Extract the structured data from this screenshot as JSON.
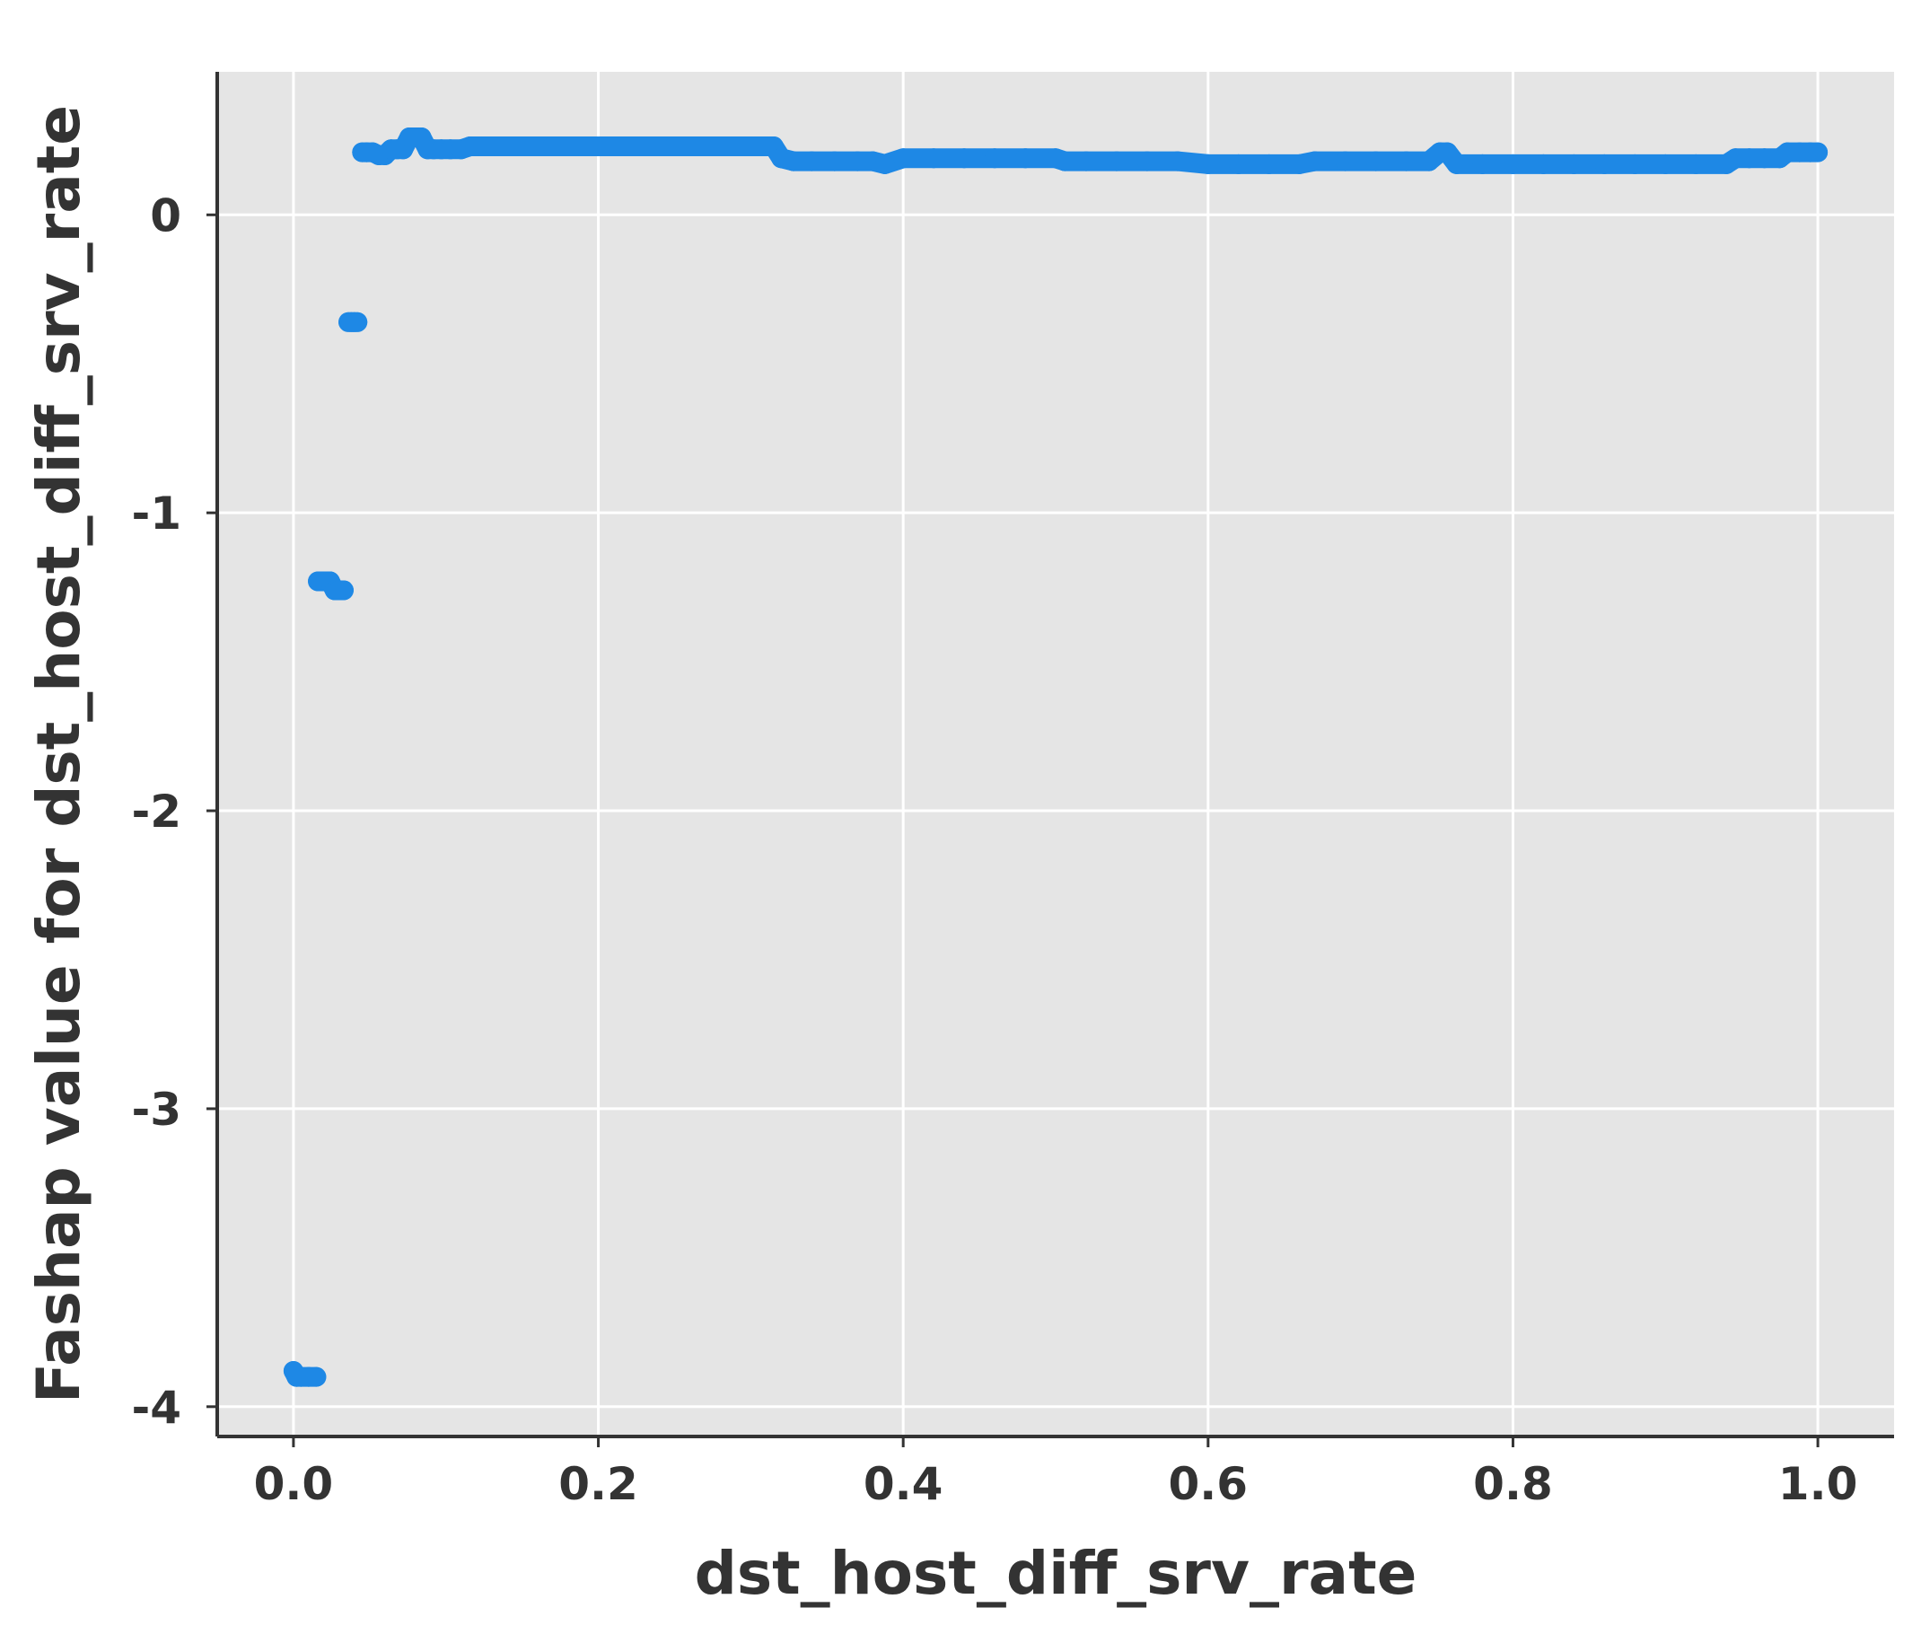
{
  "chart_data": {
    "type": "scatter",
    "title": "",
    "xlabel": "dst_host_diff_srv_rate",
    "ylabel": "Fashap value for dst_host_diff_srv_rate",
    "xlim": [
      -0.05,
      1.05
    ],
    "ylim": [
      -4.1,
      0.48
    ],
    "x_ticks": [
      0.0,
      0.2,
      0.4,
      0.6,
      0.8,
      1.0
    ],
    "x_tick_labels": [
      "0.0",
      "0.2",
      "0.4",
      "0.6",
      "0.8",
      "1.0"
    ],
    "y_ticks": [
      0,
      -1,
      -2,
      -3,
      -4
    ],
    "y_tick_labels": [
      "0",
      "-1",
      "-2",
      "-3",
      "-4"
    ],
    "grid": true,
    "colors": {
      "points": "#1E88E5",
      "panel": "#E5E5E5",
      "grid": "#FFFFFF",
      "axis": "#333333"
    },
    "series": [
      {
        "x": [
          0.0,
          0.002,
          0.005,
          0.01,
          0.015,
          0.016,
          0.02,
          0.024,
          0.027,
          0.03,
          0.033,
          0.036,
          0.038,
          0.04,
          0.042,
          0.045,
          0.048,
          0.052,
          0.056,
          0.06,
          0.064,
          0.068,
          0.072,
          0.076,
          0.08,
          0.084,
          0.088,
          0.092,
          0.097,
          0.103,
          0.11,
          0.116,
          0.125,
          0.135,
          0.15,
          0.17,
          0.19,
          0.21,
          0.23,
          0.25,
          0.27,
          0.29,
          0.305,
          0.315,
          0.32,
          0.328,
          0.34,
          0.355,
          0.37,
          0.38,
          0.388,
          0.4,
          0.42,
          0.44,
          0.46,
          0.48,
          0.5,
          0.506,
          0.52,
          0.54,
          0.56,
          0.58,
          0.6,
          0.62,
          0.64,
          0.66,
          0.67,
          0.69,
          0.71,
          0.73,
          0.745,
          0.752,
          0.757,
          0.763,
          0.78,
          0.8,
          0.82,
          0.84,
          0.86,
          0.88,
          0.9,
          0.92,
          0.94,
          0.946,
          0.955,
          0.965,
          0.975,
          0.98,
          0.988,
          0.995,
          1.0
        ],
        "y": [
          -3.88,
          -3.9,
          -3.9,
          -3.9,
          -3.9,
          -1.23,
          -1.23,
          -1.23,
          -1.26,
          -1.26,
          -1.26,
          -0.36,
          -0.36,
          -0.36,
          -0.36,
          0.21,
          0.21,
          0.21,
          0.2,
          0.2,
          0.22,
          0.22,
          0.22,
          0.26,
          0.26,
          0.26,
          0.22,
          0.22,
          0.22,
          0.22,
          0.22,
          0.23,
          0.23,
          0.23,
          0.23,
          0.23,
          0.23,
          0.23,
          0.23,
          0.23,
          0.23,
          0.23,
          0.23,
          0.23,
          0.19,
          0.18,
          0.18,
          0.18,
          0.18,
          0.18,
          0.17,
          0.19,
          0.19,
          0.19,
          0.19,
          0.19,
          0.19,
          0.18,
          0.18,
          0.18,
          0.18,
          0.18,
          0.17,
          0.17,
          0.17,
          0.17,
          0.18,
          0.18,
          0.18,
          0.18,
          0.18,
          0.21,
          0.21,
          0.17,
          0.17,
          0.17,
          0.17,
          0.17,
          0.17,
          0.17,
          0.17,
          0.17,
          0.17,
          0.19,
          0.19,
          0.19,
          0.19,
          0.21,
          0.21,
          0.21,
          0.21
        ]
      }
    ]
  }
}
